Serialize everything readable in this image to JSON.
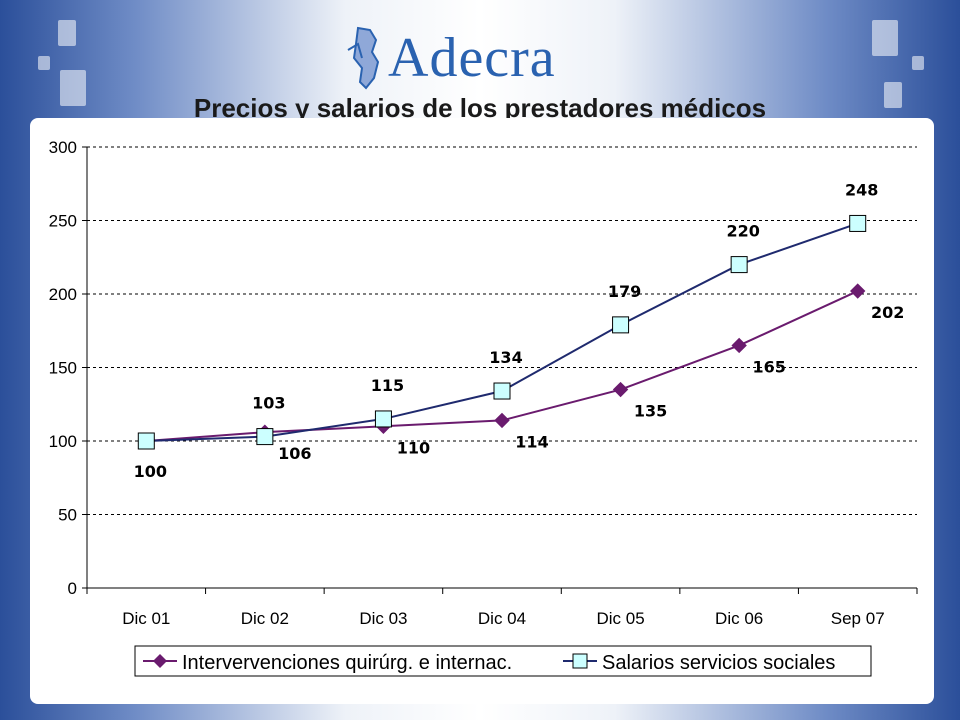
{
  "brand": {
    "logo_text": "Adecra"
  },
  "colors": {
    "series1": "#6a1b6e",
    "series2": "#1f2a6e",
    "marker2_fill": "#ccffff"
  },
  "chart_data": {
    "type": "line",
    "title": "Precios y salarios de los prestadores médicos",
    "categories": [
      "Dic 01",
      "Dic 02",
      "Dic 03",
      "Dic 04",
      "Dic 05",
      "Dic 06",
      "Sep 07"
    ],
    "series": [
      {
        "name": "Intervervenciones quirúrg. e internac.",
        "values": [
          100,
          106,
          110,
          114,
          135,
          165,
          202
        ],
        "marker": "diamond"
      },
      {
        "name": "Salarios servicios sociales",
        "values": [
          100,
          103,
          115,
          134,
          179,
          220,
          248
        ],
        "marker": "square"
      }
    ],
    "ylim": [
      0,
      300
    ],
    "yticks": [
      0,
      50,
      100,
      150,
      200,
      250,
      300
    ],
    "grid": true,
    "legend": "bottom"
  }
}
